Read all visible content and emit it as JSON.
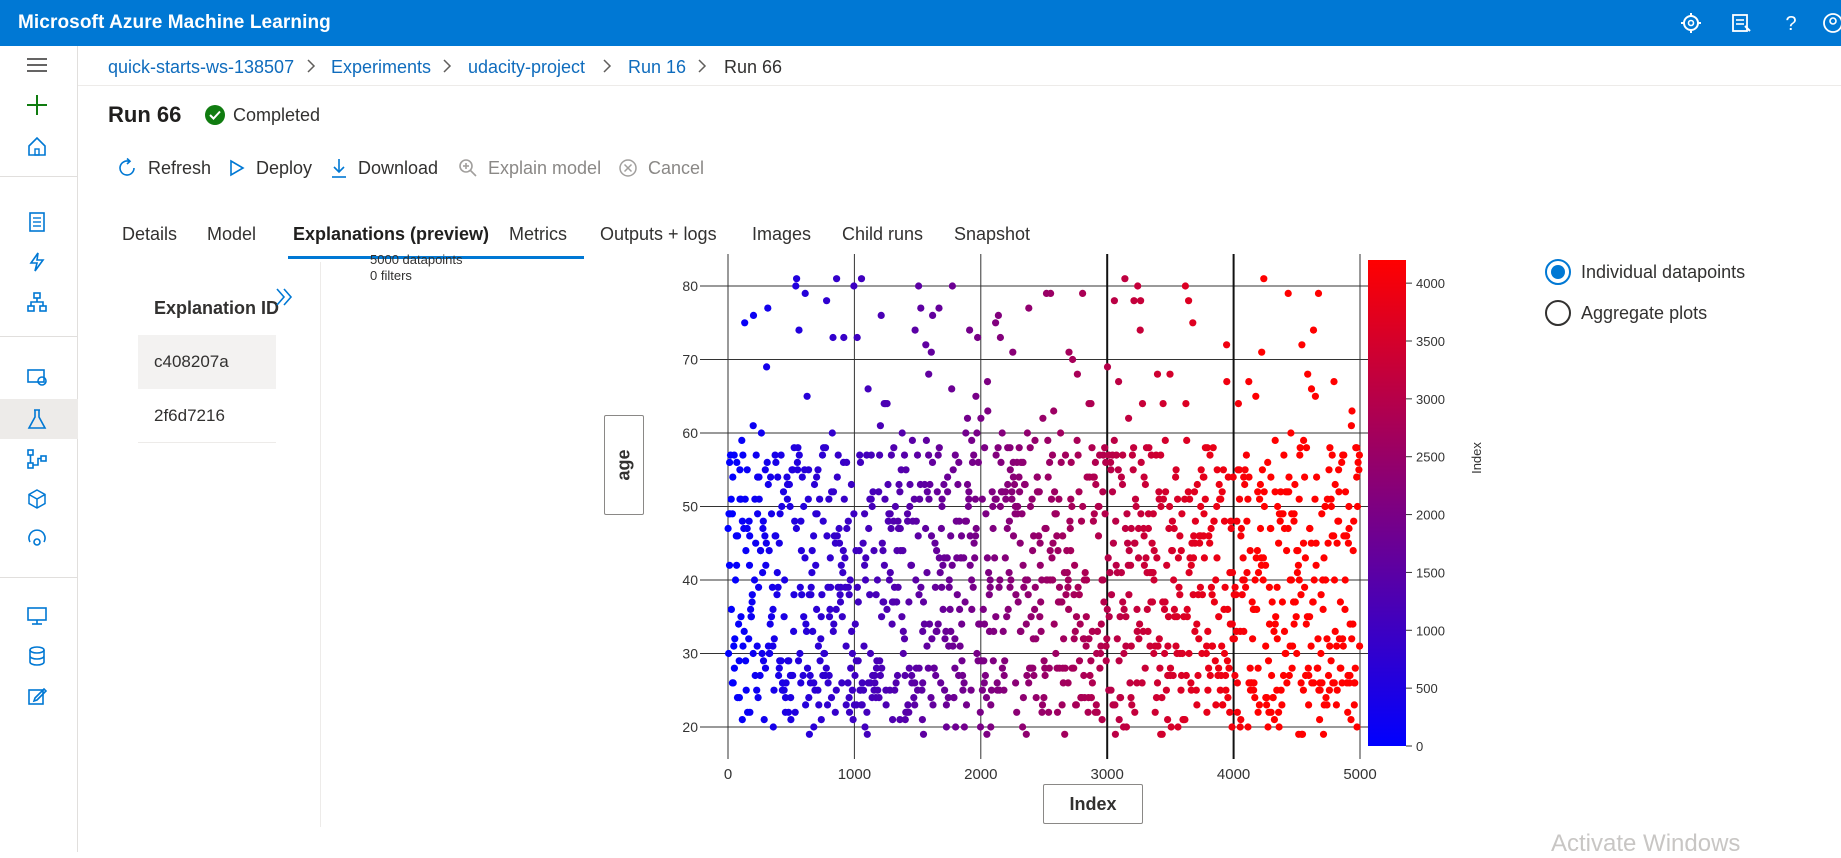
{
  "app": {
    "title": "Microsoft Azure Machine Learning"
  },
  "topbar_icons": [
    "gear-icon",
    "feedback-icon",
    "help-icon",
    "account-icon"
  ],
  "breadcrumb": [
    {
      "label": "quick-starts-ws-138507"
    },
    {
      "label": "Experiments"
    },
    {
      "label": "udacity-project"
    },
    {
      "label": "Run 16"
    },
    {
      "label": "Run 66"
    }
  ],
  "run": {
    "title": "Run 66",
    "status": "Completed",
    "status_color": "#107c10"
  },
  "commands": {
    "refresh": "Refresh",
    "deploy": "Deploy",
    "download": "Download",
    "explain": "Explain model",
    "cancel": "Cancel"
  },
  "tabs": [
    "Details",
    "Model",
    "Explanations (preview)",
    "Metrics",
    "Outputs + logs",
    "Images",
    "Child runs",
    "Snapshot"
  ],
  "active_tab": "Explanations (preview)",
  "explanations": {
    "header": "Explanation ID",
    "items": [
      "c408207a",
      "2f6d7216"
    ]
  },
  "summary": {
    "datapoints": "5000 datapoints",
    "filters": "0 filters"
  },
  "axes": {
    "y_button": "age",
    "x_button": "Index"
  },
  "view_options": {
    "individual": "Individual datapoints",
    "aggregate": "Aggregate plots",
    "selected": "individual"
  },
  "watermark": "Activate Windows",
  "colors": {
    "accent": "#0078d4",
    "colorbar_low": "#0000ff",
    "colorbar_high": "#ff0000"
  },
  "chart_data": {
    "type": "scatter",
    "x_label": "Index",
    "y_label": "age",
    "x_range": [
      0,
      5000
    ],
    "y_range": [
      17,
      83
    ],
    "x_ticks": [
      0,
      1000,
      2000,
      3000,
      4000,
      5000
    ],
    "y_ticks": [
      20,
      30,
      40,
      50,
      60,
      70,
      80
    ],
    "n_points": 5000,
    "color_by": "Index",
    "colorbar": {
      "label": "Index",
      "range": [
        0,
        4200
      ],
      "ticks": [
        0,
        500,
        1000,
        1500,
        2000,
        2500,
        3000,
        3500,
        4000
      ]
    },
    "grid": true
  }
}
